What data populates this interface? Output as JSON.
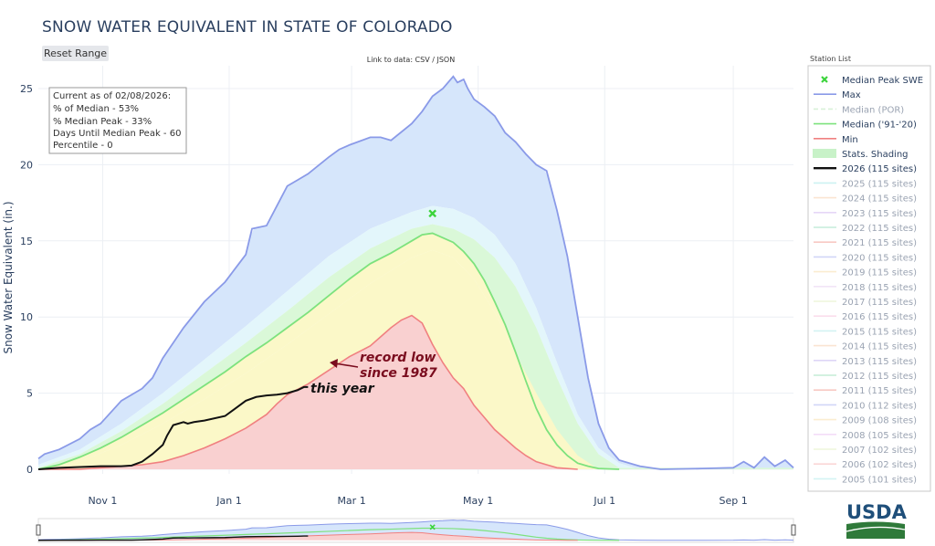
{
  "page_title": "SNOW WATER EQUIVALENT IN STATE OF COLORADO",
  "toolbar": {
    "reset_label": "Reset Range",
    "data_link": "Link to data: CSV / JSON"
  },
  "station_list": {
    "title": "Station List"
  },
  "info_box": {
    "line1": "Current as of 02/08/2026:",
    "line2": "% of Median - 53%",
    "line3": "% Median Peak - 33%",
    "line4": "Days Until Median Peak - 60",
    "line5": "Percentile - 0"
  },
  "annotations": {
    "record_low_1": "record low",
    "record_low_2": "since 1987",
    "this_year": "this year"
  },
  "logo": {
    "text": "USDA"
  },
  "colors": {
    "max": "#8a9ae8",
    "median_por": "#a9dfa9",
    "median_9120": "#7de27d",
    "min": "#f08080",
    "shade_blue": "#d6e6fb",
    "shade_lightblue": "#e3f6fb",
    "shade_green": "#daf8d8",
    "shade_yellow": "#fbf8c8",
    "shade_red": "#f9d0d0",
    "current": "#111111",
    "record_arrow": "#7a0c1e",
    "peak_marker": "#3bd43b"
  },
  "chart_data": {
    "type": "line",
    "title": "SNOW WATER EQUIVALENT IN STATE OF COLORADO",
    "ylabel": "Snow Water Equivalent (in.)",
    "xlabel": "",
    "x_unit": "day_of_water_year_from_oct_1",
    "xlim": [
      0,
      364
    ],
    "ylim": [
      -0.3,
      26.5
    ],
    "x_ticks": [
      {
        "day": 31,
        "label": "Nov 1"
      },
      {
        "day": 92,
        "label": "Jan 1"
      },
      {
        "day": 151,
        "label": "Mar 1"
      },
      {
        "day": 212,
        "label": "May 1"
      },
      {
        "day": 273,
        "label": "Jul 1"
      },
      {
        "day": 335,
        "label": "Sep 1"
      }
    ],
    "y_ticks": [
      0,
      5,
      10,
      15,
      20,
      25
    ],
    "grid": true,
    "median_peak_swe": {
      "day": 190,
      "value": 16.8
    },
    "series": [
      {
        "name": "Max",
        "x": [
          0,
          3,
          10,
          20,
          25,
          30,
          40,
          50,
          55,
          60,
          70,
          80,
          90,
          100,
          103,
          110,
          115,
          120,
          125,
          130,
          140,
          145,
          150,
          160,
          165,
          170,
          180,
          185,
          190,
          195,
          200,
          202,
          205,
          207,
          210,
          215,
          220,
          225,
          230,
          235,
          240,
          245,
          250,
          255,
          260,
          265,
          270,
          275,
          280,
          290,
          300,
          320,
          335,
          340,
          345,
          350,
          355,
          360,
          364
        ],
        "y": [
          0.7,
          1.0,
          1.3,
          2.0,
          2.6,
          3.0,
          4.5,
          5.3,
          6.0,
          7.3,
          9.3,
          11.0,
          12.3,
          14.1,
          15.8,
          16.0,
          17.3,
          18.6,
          19.0,
          19.4,
          20.5,
          21.0,
          21.3,
          21.8,
          21.8,
          21.6,
          22.7,
          23.5,
          24.5,
          25.0,
          25.8,
          25.4,
          25.6,
          25.0,
          24.3,
          23.8,
          23.2,
          22.1,
          21.5,
          20.7,
          20.0,
          19.6,
          17.0,
          14.0,
          10.0,
          6.0,
          3.0,
          1.4,
          0.6,
          0.2,
          0.0,
          0.05,
          0.1,
          0.5,
          0.1,
          0.8,
          0.2,
          0.6,
          0.1
        ]
      },
      {
        "name": "Median ('91-'20)",
        "x": [
          0,
          10,
          20,
          30,
          40,
          50,
          60,
          70,
          80,
          90,
          100,
          110,
          120,
          130,
          140,
          150,
          160,
          170,
          175,
          180,
          185,
          190,
          195,
          200,
          205,
          210,
          215,
          220,
          225,
          230,
          235,
          240,
          245,
          250,
          255,
          260,
          265,
          270,
          280
        ],
        "y": [
          0.0,
          0.3,
          0.8,
          1.4,
          2.1,
          2.9,
          3.7,
          4.6,
          5.5,
          6.4,
          7.4,
          8.3,
          9.3,
          10.3,
          11.4,
          12.5,
          13.5,
          14.2,
          14.6,
          15.0,
          15.4,
          15.5,
          15.2,
          14.9,
          14.3,
          13.5,
          12.4,
          11.0,
          9.5,
          7.7,
          5.8,
          4.0,
          2.6,
          1.6,
          0.9,
          0.4,
          0.2,
          0.05,
          0.0
        ]
      },
      {
        "name": "Min",
        "x": [
          0,
          20,
          30,
          40,
          50,
          60,
          70,
          80,
          90,
          100,
          110,
          115,
          120,
          130,
          140,
          150,
          160,
          165,
          170,
          175,
          180,
          185,
          190,
          195,
          200,
          205,
          210,
          215,
          220,
          225,
          230,
          235,
          240,
          245,
          250,
          255,
          260
        ],
        "y": [
          0.0,
          0.0,
          0.1,
          0.2,
          0.3,
          0.5,
          0.9,
          1.4,
          2.0,
          2.7,
          3.6,
          4.3,
          4.9,
          5.6,
          6.5,
          7.4,
          8.1,
          8.7,
          9.3,
          9.8,
          10.1,
          9.6,
          8.2,
          7.0,
          6.0,
          5.3,
          4.2,
          3.4,
          2.6,
          2.0,
          1.4,
          0.9,
          0.5,
          0.3,
          0.1,
          0.05,
          0.0
        ]
      },
      {
        "name": "2026 (115 sites)",
        "x": [
          0,
          10,
          20,
          30,
          40,
          45,
          50,
          55,
          60,
          62,
          65,
          70,
          72,
          75,
          80,
          90,
          95,
          100,
          105,
          110,
          115,
          120,
          125,
          128,
          130
        ],
        "y": [
          0.0,
          0.1,
          0.15,
          0.2,
          0.2,
          0.25,
          0.5,
          1.0,
          1.6,
          2.2,
          2.9,
          3.1,
          3.0,
          3.1,
          3.2,
          3.5,
          4.0,
          4.5,
          4.75,
          4.85,
          4.9,
          5.0,
          5.2,
          5.4,
          5.4
        ]
      },
      {
        "name": "Stats. Shading (upper 90%)",
        "x": [
          0,
          20,
          40,
          60,
          80,
          100,
          120,
          140,
          160,
          180,
          190,
          200,
          210,
          220,
          230,
          240,
          250,
          260,
          270,
          280,
          290
        ],
        "y": [
          0.3,
          1.3,
          3.0,
          5.0,
          7.2,
          9.4,
          11.7,
          14.0,
          15.8,
          16.9,
          17.3,
          17.1,
          16.5,
          15.4,
          13.5,
          10.6,
          7.0,
          3.6,
          1.4,
          0.4,
          0.0
        ]
      },
      {
        "name": "Stats. Shading (upper 70%)",
        "x": [
          0,
          20,
          40,
          60,
          80,
          100,
          120,
          140,
          160,
          180,
          190,
          200,
          210,
          220,
          230,
          240,
          250,
          260,
          270,
          280
        ],
        "y": [
          0.1,
          1.0,
          2.5,
          4.3,
          6.3,
          8.3,
          10.4,
          12.6,
          14.5,
          15.8,
          16.1,
          15.8,
          15.1,
          13.9,
          12.0,
          9.3,
          6.0,
          3.0,
          1.0,
          0.1
        ]
      },
      {
        "name": "Stats. Shading (lower 30%)",
        "x": [
          0,
          20,
          40,
          60,
          80,
          100,
          120,
          140,
          160,
          180,
          190,
          200,
          210,
          220,
          230,
          240,
          250,
          260,
          270
        ],
        "y": [
          0.0,
          0.5,
          1.6,
          3.0,
          4.6,
          6.3,
          8.2,
          10.2,
          12.2,
          13.9,
          14.4,
          13.9,
          12.5,
          10.3,
          7.6,
          5.0,
          2.6,
          0.9,
          0.0
        ]
      },
      {
        "name": "Stats. Shading (lower 10%)",
        "x": [
          0,
          20,
          40,
          60,
          80,
          100,
          120,
          140,
          160,
          180,
          190,
          200,
          210,
          220,
          230,
          240,
          250,
          260
        ],
        "y": [
          0.0,
          0.3,
          1.1,
          2.3,
          3.7,
          5.2,
          6.8,
          8.7,
          10.6,
          12.3,
          12.7,
          12.0,
          10.5,
          8.0,
          5.5,
          3.2,
          1.3,
          0.0
        ]
      }
    ],
    "legend": {
      "position": "right",
      "items": [
        {
          "label": "Median Peak SWE",
          "color": "#3bd43b",
          "kind": "marker",
          "active": true
        },
        {
          "label": "Max",
          "color": "#8a9ae8",
          "kind": "line",
          "active": true
        },
        {
          "label": "Median (POR)",
          "color": "#a9dfa9",
          "kind": "dash",
          "active": false
        },
        {
          "label": "Median ('91-'20)",
          "color": "#7de27d",
          "kind": "line",
          "active": true
        },
        {
          "label": "Min",
          "color": "#f08080",
          "kind": "line",
          "active": true
        },
        {
          "label": "Stats. Shading",
          "color": "#c8f2c8",
          "kind": "band",
          "active": true
        },
        {
          "label": "2026 (115 sites)",
          "color": "#111111",
          "kind": "thick",
          "active": true
        },
        {
          "label": "2025 (115 sites)",
          "color": "#8fe3e3",
          "kind": "line",
          "active": false
        },
        {
          "label": "2024 (115 sites)",
          "color": "#f5c49a",
          "kind": "line",
          "active": false
        },
        {
          "label": "2023 (115 sites)",
          "color": "#c8a6ee",
          "kind": "line",
          "active": false
        },
        {
          "label": "2022 (115 sites)",
          "color": "#7fd7ae",
          "kind": "line",
          "active": false
        },
        {
          "label": "2021 (115 sites)",
          "color": "#f08a7c",
          "kind": "line",
          "active": false
        },
        {
          "label": "2020 (115 sites)",
          "color": "#9aa6ee",
          "kind": "line",
          "active": false
        },
        {
          "label": "2019 (115 sites)",
          "color": "#f8d998",
          "kind": "line",
          "active": false
        },
        {
          "label": "2018 (115 sites)",
          "color": "#e3c6ee",
          "kind": "line",
          "active": false
        },
        {
          "label": "2017 (115 sites)",
          "color": "#d8ecb0",
          "kind": "line",
          "active": false
        },
        {
          "label": "2016 (115 sites)",
          "color": "#f6b6d6",
          "kind": "line",
          "active": false
        },
        {
          "label": "2015 (115 sites)",
          "color": "#9fe6e6",
          "kind": "line",
          "active": false
        },
        {
          "label": "2014 (115 sites)",
          "color": "#f6c49c",
          "kind": "line",
          "active": false
        },
        {
          "label": "2013 (115 sites)",
          "color": "#b8a6ee",
          "kind": "line",
          "active": false
        },
        {
          "label": "2012 (115 sites)",
          "color": "#7fd7a6",
          "kind": "line",
          "active": false
        },
        {
          "label": "2011 (115 sites)",
          "color": "#f08a7c",
          "kind": "line",
          "active": false
        },
        {
          "label": "2010 (112 sites)",
          "color": "#9aa6ee",
          "kind": "line",
          "active": false
        },
        {
          "label": "2009 (108 sites)",
          "color": "#f8d998",
          "kind": "line",
          "active": false
        },
        {
          "label": "2008 (105 sites)",
          "color": "#e6b6f0",
          "kind": "line",
          "active": false
        },
        {
          "label": "2007 (102 sites)",
          "color": "#d8ecb0",
          "kind": "line",
          "active": false
        },
        {
          "label": "2006 (102 sites)",
          "color": "#f6a6a6",
          "kind": "line",
          "active": false
        },
        {
          "label": "2005 (101 sites)",
          "color": "#9fe6e6",
          "kind": "line",
          "active": false
        }
      ]
    }
  }
}
